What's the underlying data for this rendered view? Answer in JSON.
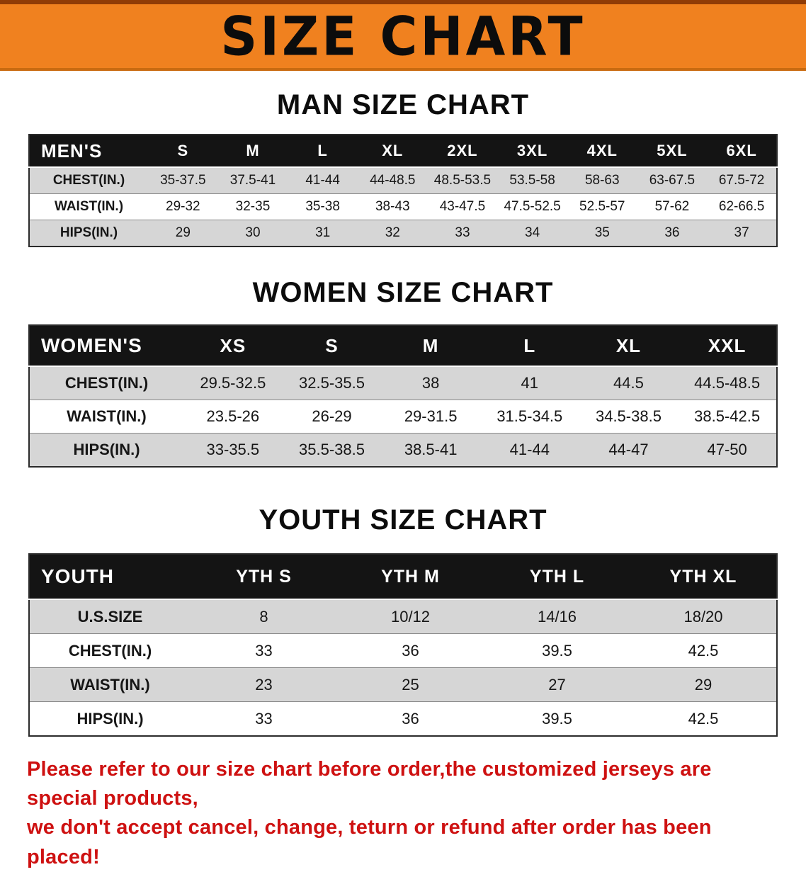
{
  "banner": {
    "title": "SIZE CHART"
  },
  "sections": [
    {
      "heading": "MAN SIZE CHART",
      "table": {
        "header": [
          "MEN'S",
          "S",
          "M",
          "L",
          "XL",
          "2XL",
          "3XL",
          "4XL",
          "5XL",
          "6XL"
        ],
        "rows": [
          [
            "CHEST(IN.)",
            "35-37.5",
            "37.5-41",
            "41-44",
            "44-48.5",
            "48.5-53.5",
            "53.5-58",
            "58-63",
            "63-67.5",
            "67.5-72"
          ],
          [
            "WAIST(IN.)",
            "29-32",
            "32-35",
            "35-38",
            "38-43",
            "43-47.5",
            "47.5-52.5",
            "52.5-57",
            "57-62",
            "62-66.5"
          ],
          [
            "HIPS(IN.)",
            "29",
            "30",
            "31",
            "32",
            "33",
            "34",
            "35",
            "36",
            "37"
          ]
        ]
      }
    },
    {
      "heading": "WOMEN SIZE CHART",
      "table": {
        "header": [
          "WOMEN'S",
          "XS",
          "S",
          "M",
          "L",
          "XL",
          "XXL"
        ],
        "rows": [
          [
            "CHEST(IN.)",
            "29.5-32.5",
            "32.5-35.5",
            "38",
            "41",
            "44.5",
            "44.5-48.5"
          ],
          [
            "WAIST(IN.)",
            "23.5-26",
            "26-29",
            "29-31.5",
            "31.5-34.5",
            "34.5-38.5",
            "38.5-42.5"
          ],
          [
            "HIPS(IN.)",
            "33-35.5",
            "35.5-38.5",
            "38.5-41",
            "41-44",
            "44-47",
            "47-50"
          ]
        ]
      }
    },
    {
      "heading": "YOUTH SIZE CHART",
      "table": {
        "header": [
          "YOUTH",
          "YTH S",
          "YTH M",
          "YTH L",
          "YTH XL"
        ],
        "rows": [
          [
            "U.S.SIZE",
            "8",
            "10/12",
            "14/16",
            "18/20"
          ],
          [
            "CHEST(IN.)",
            "33",
            "36",
            "39.5",
            "42.5"
          ],
          [
            "WAIST(IN.)",
            "23",
            "25",
            "27",
            "29"
          ],
          [
            "HIPS(IN.)",
            "33",
            "36",
            "39.5",
            "42.5"
          ]
        ]
      }
    }
  ],
  "footer": {
    "line1": "Please refer to our size chart before order,the customized jerseys are special products,",
    "line2": "we don't accept cancel, change, teturn or refund after order has been placed!"
  },
  "colors": {
    "banner_bg": "#f0811f",
    "table_header_bg": "#141414",
    "row_alt_bg": "#d6d6d6",
    "footer_text": "#ce1111"
  }
}
